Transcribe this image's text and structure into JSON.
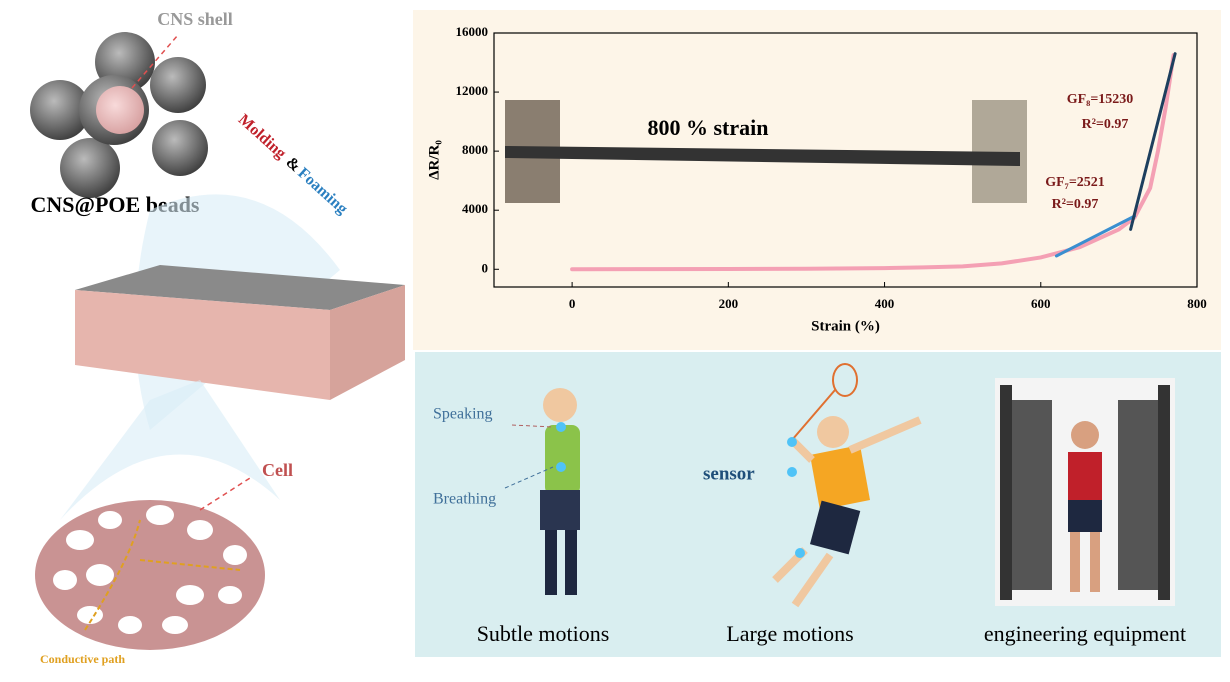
{
  "chart_data": {
    "type": "line",
    "xlabel": "Strain (%)",
    "ylabel": "ΔR/R₀",
    "xlim": [
      -100,
      800
    ],
    "xticks": [
      0,
      200,
      400,
      600,
      800
    ],
    "ylim": [
      -1200,
      16000
    ],
    "yticks": [
      0,
      4000,
      8000,
      12000,
      16000
    ],
    "series": [
      {
        "color": "#f4a0b4",
        "x": [
          0,
          100,
          200,
          300,
          400,
          450,
          500,
          550,
          600,
          650,
          700,
          720,
          740,
          750,
          760,
          770
        ],
        "values": [
          0,
          10,
          20,
          40,
          80,
          130,
          200,
          400,
          800,
          1500,
          2700,
          3500,
          5500,
          8000,
          11000,
          14500
        ]
      },
      {
        "color": "#3a8fd0",
        "x": [
          620,
          720
        ],
        "values": [
          900,
          3600
        ]
      },
      {
        "color": "#1d3f5e",
        "x": [
          715,
          772
        ],
        "values": [
          2700,
          14600
        ]
      }
    ],
    "annotations": [
      "GF₈=15230",
      "R²=0.97",
      "GF₇=2521",
      "R²=0.97",
      "800 % strain"
    ]
  },
  "figure": {
    "cns_shell": "CNS shell",
    "beads": "CNS@POE beads",
    "molding": "Molding",
    "amp": "&",
    "foaming": "Foaming",
    "cell": "Cell",
    "conductive_path": "Conductive path",
    "speaking": "Speaking",
    "breathing": "Breathing",
    "sensor": "sensor",
    "captions": [
      "Subtle motions",
      "Large motions",
      "engineering equipment"
    ]
  }
}
